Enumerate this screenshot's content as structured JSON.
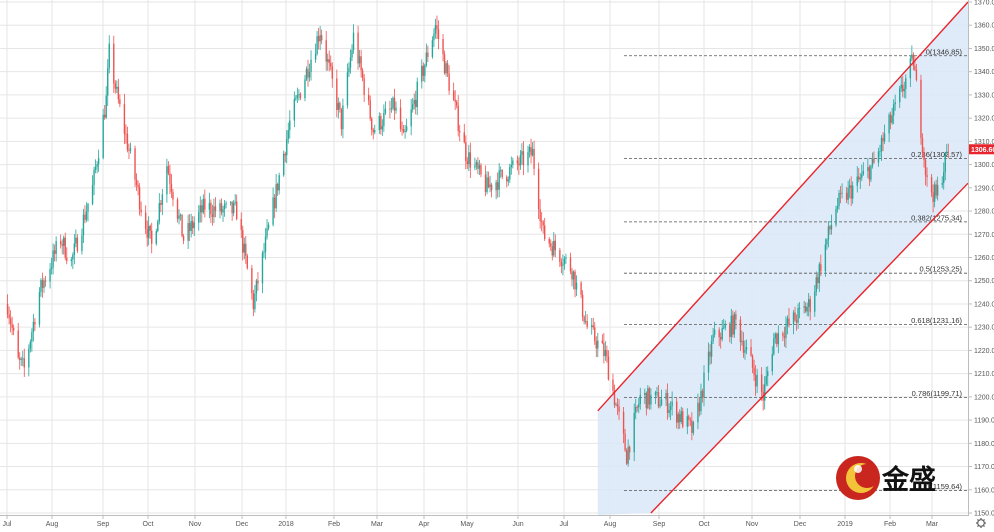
{
  "chart_data": {
    "type": "candlestick",
    "instrument": "gold",
    "colors": {
      "up": "#26a69a",
      "down": "#ef5350",
      "channel_line": "#e8242c",
      "channel_fill": "#d9e7f7",
      "grid": "#e6e6e6",
      "price_label_bg": "#e8242c"
    },
    "y_axis": {
      "min": 1150,
      "max": 1370,
      "step": 10,
      "side": "right"
    },
    "x_axis_labels": [
      "Jul",
      "Aug",
      "Sep",
      "Oct",
      "Nov",
      "Dec",
      "2018",
      "Feb",
      "Mar",
      "Apr",
      "May",
      "Jun",
      "Jul",
      "Aug",
      "Sep",
      "Oct",
      "Nov",
      "Dec",
      "2019",
      "Feb",
      "Mar"
    ],
    "grid": true,
    "last_price": "1306.60",
    "price_path": [
      {
        "d": "2017-07-03",
        "v": 1240
      },
      {
        "d": "2017-07-10",
        "v": 1215
      },
      {
        "d": "2017-07-14",
        "v": 1212
      },
      {
        "d": "2017-07-24",
        "v": 1245
      },
      {
        "d": "2017-08-07",
        "v": 1268
      },
      {
        "d": "2017-08-14",
        "v": 1258
      },
      {
        "d": "2017-08-28",
        "v": 1290
      },
      {
        "d": "2017-09-06",
        "v": 1328
      },
      {
        "d": "2017-09-08",
        "v": 1348
      },
      {
        "d": "2017-09-13",
        "v": 1330
      },
      {
        "d": "2017-09-29",
        "v": 1282
      },
      {
        "d": "2017-10-06",
        "v": 1265
      },
      {
        "d": "2017-10-16",
        "v": 1300
      },
      {
        "d": "2017-10-27",
        "v": 1268
      },
      {
        "d": "2017-11-10",
        "v": 1282
      },
      {
        "d": "2017-11-20",
        "v": 1280
      },
      {
        "d": "2017-12-01",
        "v": 1280
      },
      {
        "d": "2017-12-12",
        "v": 1240
      },
      {
        "d": "2017-12-26",
        "v": 1285
      },
      {
        "d": "2018-01-05",
        "v": 1318
      },
      {
        "d": "2018-01-25",
        "v": 1358
      },
      {
        "d": "2018-02-08",
        "v": 1318
      },
      {
        "d": "2018-02-16",
        "v": 1355
      },
      {
        "d": "2018-03-01",
        "v": 1315
      },
      {
        "d": "2018-03-15",
        "v": 1325
      },
      {
        "d": "2018-03-21",
        "v": 1310
      },
      {
        "d": "2018-04-11",
        "v": 1360
      },
      {
        "d": "2018-04-20",
        "v": 1335
      },
      {
        "d": "2018-05-01",
        "v": 1305
      },
      {
        "d": "2018-05-15",
        "v": 1290
      },
      {
        "d": "2018-06-14",
        "v": 1305
      },
      {
        "d": "2018-06-21",
        "v": 1270
      },
      {
        "d": "2018-07-10",
        "v": 1255
      },
      {
        "d": "2018-07-20",
        "v": 1230
      },
      {
        "d": "2018-08-01",
        "v": 1218
      },
      {
        "d": "2018-08-15",
        "v": 1175
      },
      {
        "d": "2018-08-24",
        "v": 1200
      },
      {
        "d": "2018-09-10",
        "v": 1198
      },
      {
        "d": "2018-09-28",
        "v": 1185
      },
      {
        "d": "2018-10-11",
        "v": 1225
      },
      {
        "d": "2018-10-26",
        "v": 1232
      },
      {
        "d": "2018-11-13",
        "v": 1200
      },
      {
        "d": "2018-11-20",
        "v": 1225
      },
      {
        "d": "2018-12-14",
        "v": 1240
      },
      {
        "d": "2018-12-31",
        "v": 1282
      },
      {
        "d": "2019-01-25",
        "v": 1300
      },
      {
        "d": "2019-02-20",
        "v": 1345
      },
      {
        "d": "2019-03-01",
        "v": 1292
      },
      {
        "d": "2019-03-07",
        "v": 1286
      },
      {
        "d": "2019-03-15",
        "v": 1306.6
      }
    ],
    "channel": {
      "upper": [
        {
          "d": "2018-07-27",
          "v": 1194
        },
        {
          "d": "2019-03-28",
          "v": 1370
        }
      ],
      "lower": [
        {
          "d": "2018-08-31",
          "v": 1150
        },
        {
          "d": "2019-03-28",
          "v": 1292
        }
      ]
    },
    "fibonacci": [
      {
        "ratio": "0",
        "value": 1346.85,
        "label": "0(1346.85)"
      },
      {
        "ratio": "0.236",
        "value": 1302.57,
        "label": "0.236(1302.57)"
      },
      {
        "ratio": "0.382",
        "value": 1275.34,
        "label": "0.382(1275.34)"
      },
      {
        "ratio": "0.5",
        "value": 1253.25,
        "label": "0.5(1253.25)"
      },
      {
        "ratio": "0.618",
        "value": 1231.16,
        "label": "0.618(1231.16)"
      },
      {
        "ratio": "0.786",
        "value": 1199.71,
        "label": "0.786(1199.71)"
      },
      {
        "ratio": "1",
        "value": 1159.64,
        "label": "1(1159.64)"
      }
    ],
    "watermark": {
      "text": "金盛"
    },
    "settings_icon": "gear-icon"
  }
}
